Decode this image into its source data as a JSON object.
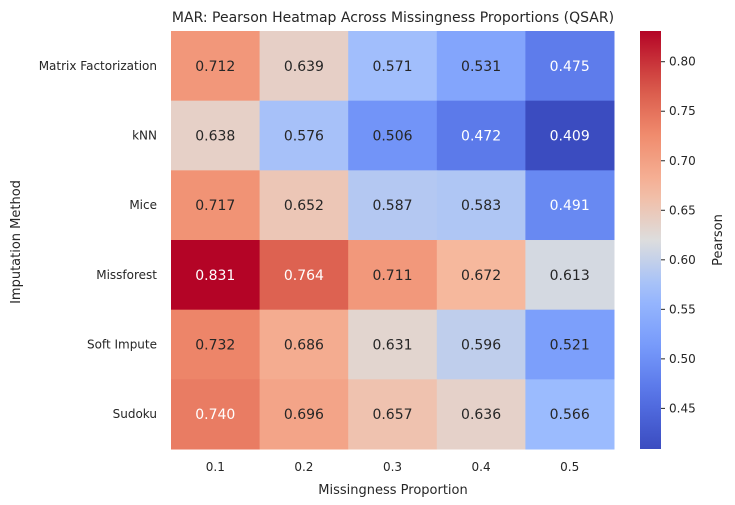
{
  "chart_data": {
    "type": "heatmap",
    "title": "MAR: Pearson Heatmap Across Missingness Proportions (QSAR)",
    "xlabel": "Missingness Proportion",
    "ylabel": "Imputation Method",
    "x_categories": [
      "0.1",
      "0.2",
      "0.3",
      "0.4",
      "0.5"
    ],
    "y_categories": [
      "Matrix Factorization",
      "kNN",
      "Mice",
      "Missforest",
      "Soft Impute",
      "Sudoku"
    ],
    "values": [
      [
        0.712,
        0.639,
        0.571,
        0.531,
        0.475
      ],
      [
        0.638,
        0.576,
        0.506,
        0.472,
        0.409
      ],
      [
        0.717,
        0.652,
        0.587,
        0.583,
        0.491
      ],
      [
        0.831,
        0.764,
        0.711,
        0.672,
        0.613
      ],
      [
        0.732,
        0.686,
        0.631,
        0.596,
        0.521
      ],
      [
        0.74,
        0.696,
        0.657,
        0.636,
        0.566
      ]
    ],
    "value_labels": [
      [
        "0.712",
        "0.639",
        "0.571",
        "0.531",
        "0.475"
      ],
      [
        "0.638",
        "0.576",
        "0.506",
        "0.472",
        "0.409"
      ],
      [
        "0.717",
        "0.652",
        "0.587",
        "0.583",
        "0.491"
      ],
      [
        "0.831",
        "0.764",
        "0.711",
        "0.672",
        "0.613"
      ],
      [
        "0.732",
        "0.686",
        "0.631",
        "0.596",
        "0.521"
      ],
      [
        "0.740",
        "0.696",
        "0.657",
        "0.636",
        "0.566"
      ]
    ],
    "colormap": "coolwarm",
    "colorbar": {
      "label": "Pearson",
      "range": [
        0.409,
        0.831
      ],
      "ticks": [
        "0.45",
        "0.50",
        "0.55",
        "0.60",
        "0.65",
        "0.70",
        "0.75",
        "0.80"
      ]
    },
    "colors": {
      "low": "#3b4cc0",
      "mid": "#dddddd",
      "high": "#b40426",
      "text_dark": "#262626",
      "text_light": "#ffffff"
    },
    "grid": false
  }
}
